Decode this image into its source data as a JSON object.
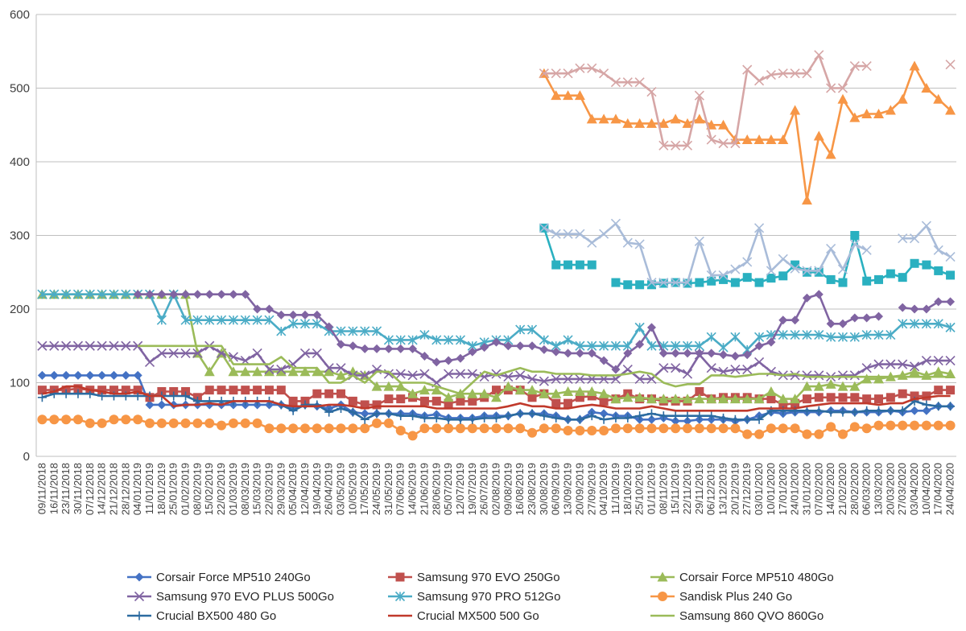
{
  "chart_data": {
    "type": "line",
    "title": "",
    "xlabel": "",
    "ylabel": "",
    "ylim": [
      0,
      600
    ],
    "yticks": [
      0,
      100,
      200,
      300,
      400,
      500,
      600
    ],
    "grid": "horizontal",
    "legend_position": "bottom",
    "x": [
      "09/11/2018",
      "16/11/2018",
      "23/11/2018",
      "30/11/2018",
      "07/12/2018",
      "14/12/2018",
      "21/12/2018",
      "28/12/2018",
      "04/01/2019",
      "11/01/2019",
      "18/01/2019",
      "25/01/2019",
      "01/02/2019",
      "08/02/2019",
      "15/02/2019",
      "22/02/2019",
      "01/03/2019",
      "08/03/2019",
      "15/03/2019",
      "22/03/2019",
      "29/03/2019",
      "05/04/2019",
      "12/04/2019",
      "19/04/2019",
      "26/04/2019",
      "03/05/2019",
      "10/05/2019",
      "17/05/2019",
      "24/05/2019",
      "31/05/2019",
      "07/06/2019",
      "14/06/2019",
      "21/06/2019",
      "28/06/2019",
      "05/07/2019",
      "12/07/2019",
      "19/07/2019",
      "26/07/2019",
      "02/08/2019",
      "09/08/2019",
      "16/08/2019",
      "23/08/2019",
      "30/08/2019",
      "06/09/2019",
      "13/09/2019",
      "20/09/2019",
      "27/09/2019",
      "04/10/2019",
      "11/10/2019",
      "18/10/2019",
      "25/10/2019",
      "01/11/2019",
      "08/11/2019",
      "15/11/2019",
      "22/11/2019",
      "29/11/2019",
      "06/12/2019",
      "13/12/2019",
      "20/12/2019",
      "27/12/2019",
      "03/01/2020",
      "10/01/2020",
      "17/01/2020",
      "24/01/2020",
      "31/01/2020",
      "07/02/2020",
      "14/02/2020",
      "21/02/2020",
      "28/02/2020",
      "06/03/2020",
      "13/03/2020",
      "20/03/2020",
      "27/03/2020",
      "03/04/2020",
      "10/04/2020",
      "17/04/2020",
      "24/04/2020"
    ],
    "series": [
      {
        "name": "Corsair Force MP510 240Go",
        "color": "#4472c4",
        "marker": "diamond",
        "values": [
          110,
          110,
          110,
          110,
          110,
          110,
          110,
          110,
          110,
          70,
          70,
          70,
          70,
          70,
          70,
          70,
          70,
          70,
          70,
          70,
          70,
          65,
          70,
          68,
          65,
          70,
          60,
          58,
          58,
          58,
          58,
          58,
          55,
          57,
          52,
          52,
          52,
          55,
          55,
          55,
          58,
          58,
          58,
          55,
          50,
          50,
          60,
          58,
          55,
          55,
          50,
          50,
          52,
          48,
          48,
          50,
          50,
          50,
          48,
          50,
          55,
          60,
          58,
          60,
          60,
          60,
          62,
          62,
          60,
          60,
          60,
          62,
          60,
          62,
          62,
          68,
          68
        ]
      },
      {
        "name": "Samsung 970 EVO 250Go",
        "color": "#c0504d",
        "marker": "square",
        "values": [
          90,
          90,
          90,
          92,
          90,
          90,
          90,
          90,
          90,
          80,
          88,
          88,
          88,
          80,
          90,
          90,
          90,
          90,
          90,
          90,
          90,
          75,
          75,
          85,
          85,
          85,
          75,
          70,
          70,
          78,
          78,
          80,
          75,
          75,
          72,
          75,
          75,
          80,
          90,
          90,
          90,
          80,
          85,
          72,
          72,
          80,
          82,
          75,
          78,
          85,
          78,
          78,
          75,
          75,
          75,
          88,
          78,
          80,
          80,
          80,
          78,
          78,
          70,
          72,
          78,
          80,
          80,
          80,
          80,
          78,
          78,
          80,
          85,
          82,
          82,
          90,
          90
        ]
      },
      {
        "name": "Corsair Force MP510 480Go",
        "color": "#9bbb59",
        "marker": "triangle",
        "values": [
          220,
          220,
          220,
          220,
          220,
          220,
          220,
          220,
          220,
          220,
          220,
          220,
          220,
          140,
          115,
          140,
          115,
          115,
          115,
          115,
          115,
          115,
          115,
          115,
          115,
          110,
          115,
          110,
          95,
          95,
          95,
          85,
          90,
          90,
          80,
          85,
          85,
          85,
          80,
          95,
          90,
          90,
          85,
          85,
          88,
          88,
          88,
          85,
          78,
          80,
          80,
          78,
          78,
          78,
          78,
          78,
          78,
          78,
          78,
          78,
          78,
          88,
          78,
          78,
          95,
          95,
          98,
          95,
          95,
          105,
          105,
          108,
          110,
          115,
          110,
          115,
          112
        ]
      },
      {
        "name": "Samsung 970 EVO PLUS 500Go",
        "color": "#8064a2",
        "marker": "x",
        "values": [
          150,
          150,
          150,
          150,
          150,
          150,
          150,
          150,
          150,
          128,
          140,
          140,
          140,
          140,
          150,
          140,
          135,
          130,
          140,
          118,
          118,
          125,
          140,
          140,
          120,
          120,
          110,
          110,
          118,
          112,
          112,
          110,
          112,
          100,
          112,
          112,
          112,
          108,
          112,
          108,
          110,
          105,
          102,
          105,
          105,
          105,
          105,
          105,
          105,
          118,
          105,
          105,
          120,
          120,
          112,
          138,
          120,
          115,
          118,
          118,
          128,
          115,
          110,
          110,
          110,
          110,
          108,
          110,
          110,
          120,
          125,
          125,
          125,
          122,
          130,
          130,
          130
        ]
      },
      {
        "name": "Samsung 970 PRO 512Go",
        "color": "#4bacc6",
        "marker": "asterisk",
        "values": [
          220,
          220,
          220,
          220,
          220,
          220,
          220,
          220,
          220,
          220,
          185,
          220,
          185,
          185,
          185,
          185,
          185,
          185,
          185,
          185,
          170,
          180,
          180,
          180,
          170,
          170,
          170,
          170,
          170,
          158,
          158,
          158,
          165,
          158,
          158,
          158,
          150,
          155,
          158,
          158,
          172,
          172,
          158,
          150,
          158,
          150,
          150,
          150,
          150,
          150,
          175,
          150,
          150,
          150,
          150,
          150,
          162,
          148,
          162,
          145,
          162,
          165,
          165,
          165,
          165,
          165,
          162,
          162,
          162,
          165,
          165,
          165,
          180,
          180,
          180,
          180,
          175
        ]
      },
      {
        "name": "Sandisk Plus 240 Go",
        "color": "#f79646",
        "marker": "circle",
        "values": [
          50,
          50,
          50,
          50,
          45,
          45,
          50,
          50,
          50,
          45,
          45,
          45,
          45,
          45,
          45,
          42,
          45,
          45,
          45,
          38,
          38,
          38,
          38,
          38,
          38,
          38,
          38,
          38,
          45,
          45,
          35,
          28,
          38,
          38,
          38,
          38,
          38,
          38,
          38,
          38,
          38,
          32,
          38,
          38,
          35,
          35,
          35,
          35,
          38,
          38,
          38,
          38,
          38,
          38,
          38,
          38,
          38,
          38,
          38,
          30,
          30,
          38,
          38,
          38,
          30,
          30,
          40,
          30,
          40,
          38,
          42,
          42,
          42,
          42,
          42,
          42,
          42
        ]
      },
      {
        "name": "Crucial BX500 480 Go",
        "color": "#2c6ba0",
        "marker": "plus",
        "values": [
          80,
          85,
          85,
          85,
          85,
          82,
          82,
          82,
          82,
          82,
          82,
          82,
          82,
          75,
          75,
          75,
          75,
          75,
          75,
          75,
          70,
          62,
          70,
          70,
          60,
          65,
          60,
          50,
          58,
          58,
          55,
          55,
          52,
          52,
          50,
          50,
          50,
          52,
          52,
          55,
          58,
          58,
          55,
          52,
          50,
          50,
          55,
          50,
          52,
          52,
          55,
          58,
          55,
          55,
          55,
          55,
          55,
          52,
          50,
          50,
          50,
          62,
          62,
          62,
          62,
          62,
          60,
          60,
          60,
          62,
          62,
          62,
          62,
          75,
          70,
          68,
          68
        ]
      },
      {
        "name": "Crucial MX500 500 Go",
        "color": "#c0392b",
        "marker": "none",
        "values": [
          85,
          88,
          95,
          95,
          90,
          88,
          85,
          85,
          88,
          82,
          82,
          68,
          70,
          70,
          72,
          70,
          75,
          75,
          75,
          75,
          70,
          68,
          68,
          68,
          70,
          70,
          68,
          65,
          68,
          68,
          68,
          68,
          68,
          65,
          65,
          65,
          65,
          65,
          65,
          68,
          72,
          68,
          68,
          65,
          65,
          68,
          70,
          68,
          65,
          65,
          65,
          68,
          65,
          62,
          62,
          62,
          62,
          62,
          62,
          62,
          65,
          65,
          65,
          65,
          68,
          70,
          72,
          72,
          72,
          72,
          70,
          72,
          72,
          78,
          80,
          82,
          82
        ]
      },
      {
        "name": "Samsung 860 QVO 860Go",
        "color": "#9bbb59",
        "marker": "none",
        "values": [
          null,
          null,
          null,
          null,
          null,
          null,
          null,
          null,
          150,
          150,
          150,
          150,
          150,
          150,
          150,
          150,
          125,
          125,
          125,
          125,
          135,
          120,
          120,
          120,
          100,
          100,
          110,
          100,
          115,
          115,
          100,
          100,
          100,
          95,
          90,
          85,
          100,
          115,
          110,
          115,
          120,
          115,
          115,
          112,
          112,
          112,
          110,
          110,
          110,
          112,
          115,
          112,
          100,
          95,
          98,
          98,
          110,
          110,
          108,
          110,
          112,
          112,
          110,
          112,
          108,
          108,
          108,
          108,
          108,
          108,
          108,
          108,
          108,
          108,
          108,
          108,
          108
        ]
      },
      {
        "name": "",
        "color": "#f79646",
        "marker": "triangle",
        "values": [
          null,
          null,
          null,
          null,
          null,
          null,
          null,
          null,
          null,
          null,
          null,
          null,
          null,
          null,
          null,
          null,
          null,
          null,
          null,
          null,
          null,
          null,
          null,
          null,
          null,
          null,
          null,
          null,
          null,
          null,
          null,
          null,
          null,
          null,
          null,
          null,
          null,
          null,
          null,
          null,
          null,
          null,
          520,
          490,
          490,
          490,
          458,
          458,
          458,
          452,
          452,
          452,
          452,
          458,
          452,
          458,
          450,
          450,
          430,
          430,
          430,
          430,
          430,
          470,
          348,
          435,
          410,
          485,
          460,
          465,
          465,
          470,
          485,
          530,
          500,
          485,
          470
        ]
      },
      {
        "name": "",
        "color": "#d6a6a6",
        "marker": "x",
        "values": [
          null,
          null,
          null,
          null,
          null,
          null,
          null,
          null,
          null,
          null,
          null,
          null,
          null,
          null,
          null,
          null,
          null,
          null,
          null,
          null,
          null,
          null,
          null,
          null,
          null,
          null,
          null,
          null,
          null,
          null,
          null,
          null,
          null,
          null,
          null,
          null,
          null,
          null,
          null,
          null,
          null,
          null,
          520,
          520,
          520,
          527,
          527,
          520,
          508,
          508,
          508,
          495,
          422,
          422,
          422,
          490,
          430,
          425,
          425,
          525,
          510,
          518,
          520,
          520,
          520,
          545,
          500,
          500,
          530,
          530,
          null,
          null,
          null,
          null,
          null,
          null,
          532
        ]
      },
      {
        "name": "",
        "color": "#2ab0c0",
        "marker": "square",
        "values": [
          null,
          null,
          null,
          null,
          null,
          null,
          null,
          null,
          null,
          null,
          null,
          null,
          null,
          null,
          null,
          null,
          null,
          null,
          null,
          null,
          null,
          null,
          null,
          null,
          null,
          null,
          null,
          null,
          null,
          null,
          null,
          null,
          null,
          null,
          null,
          null,
          null,
          null,
          null,
          null,
          null,
          null,
          310,
          260,
          260,
          260,
          260,
          null,
          236,
          233,
          233,
          233,
          235,
          236,
          235,
          236,
          238,
          240,
          236,
          243,
          236,
          242,
          245,
          260,
          250,
          250,
          240,
          236,
          300,
          238,
          240,
          248,
          243,
          262,
          260,
          252,
          246
        ]
      },
      {
        "name": "",
        "color": "#a9bcd9",
        "marker": "x",
        "values": [
          null,
          null,
          null,
          null,
          null,
          null,
          null,
          null,
          null,
          null,
          null,
          null,
          null,
          null,
          null,
          null,
          null,
          null,
          null,
          null,
          null,
          null,
          null,
          null,
          null,
          null,
          null,
          null,
          null,
          null,
          null,
          null,
          null,
          null,
          null,
          null,
          null,
          null,
          null,
          null,
          null,
          null,
          310,
          302,
          302,
          302,
          290,
          302,
          316,
          290,
          288,
          236,
          236,
          236,
          236,
          292,
          246,
          246,
          254,
          264,
          310,
          252,
          268,
          255,
          252,
          252,
          282,
          254,
          288,
          280,
          null,
          null,
          296,
          296,
          313,
          280,
          271
        ]
      },
      {
        "name": "",
        "color": "#8064a2",
        "marker": "diamond",
        "values": [
          null,
          null,
          null,
          null,
          null,
          null,
          null,
          null,
          220,
          220,
          220,
          220,
          220,
          220,
          220,
          220,
          220,
          220,
          200,
          200,
          192,
          192,
          192,
          192,
          176,
          152,
          150,
          146,
          146,
          146,
          146,
          146,
          136,
          128,
          130,
          133,
          142,
          148,
          155,
          150,
          150,
          150,
          145,
          142,
          140,
          140,
          140,
          130,
          118,
          140,
          152,
          175,
          140,
          140,
          140,
          140,
          140,
          138,
          136,
          138,
          150,
          155,
          185,
          185,
          215,
          220,
          180,
          180,
          188,
          188,
          190,
          null,
          202,
          200,
          200,
          210,
          210
        ]
      }
    ]
  }
}
